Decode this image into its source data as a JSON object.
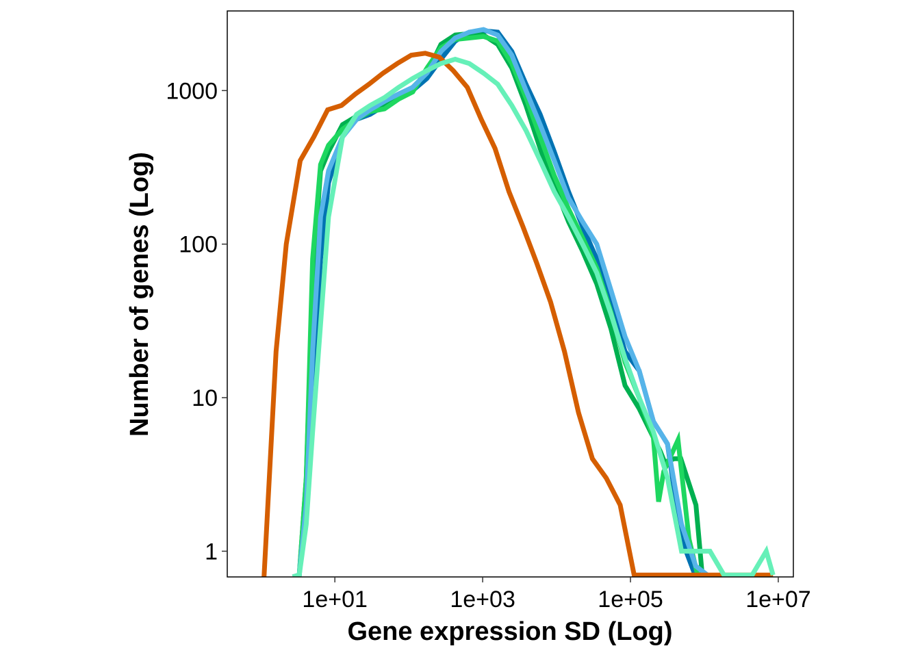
{
  "chart_data": {
    "type": "line",
    "xlabel": "Gene expression SD (Log)",
    "ylabel": "Number of genes (Log)",
    "x_scale": "log10",
    "y_scale": "log10",
    "xlim": [
      0.35,
      16000000
    ],
    "ylim": [
      0.68,
      3300
    ],
    "x_ticks": [
      10,
      1000,
      100000,
      10000000
    ],
    "x_tick_labels": [
      "1e+01",
      "1e+03",
      "1e+05",
      "1e+07"
    ],
    "y_ticks": [
      1,
      10,
      100,
      1000
    ],
    "y_tick_labels": [
      "1",
      "10",
      "100",
      "1000"
    ],
    "grid": false,
    "legend": "none",
    "series": [
      {
        "color": "#0072B2",
        "x": [
          2.7,
          3.3,
          4.1,
          5.0,
          6.4,
          8.2,
          12.7,
          19.7,
          30,
          47,
          73,
          113,
          176,
          273,
          425,
          660,
          1025,
          1600,
          2480,
          3860,
          6000,
          9300,
          14500,
          22500,
          35000,
          54500,
          84500,
          131000,
          204000,
          317000,
          490000,
          765000,
          1190000
        ],
        "y": [
          0.68,
          0.7,
          2,
          10,
          80,
          250,
          500,
          650,
          700,
          800,
          900,
          1000,
          1200,
          1600,
          2100,
          2400,
          2450,
          2400,
          1800,
          1100,
          700,
          400,
          220,
          130,
          80,
          40,
          20,
          15,
          7,
          5,
          1.2,
          0.68,
          0.68
        ]
      },
      {
        "color": "#00B050",
        "x": [
          2.7,
          3.3,
          4.1,
          5.0,
          6.4,
          8.2,
          12.7,
          19.7,
          30,
          47,
          73,
          113,
          176,
          273,
          425,
          660,
          1025,
          1600,
          2480,
          3860,
          6000,
          9300,
          14500,
          22500,
          35000,
          54500,
          84500,
          131000,
          204000,
          252000,
          290000,
          390000,
          480000,
          770000,
          940000,
          1100000
        ],
        "y": [
          0.68,
          0.7,
          3,
          60,
          300,
          400,
          600,
          680,
          750,
          800,
          900,
          1050,
          1300,
          2000,
          2300,
          2350,
          2300,
          2000,
          1400,
          800,
          420,
          240,
          140,
          90,
          55,
          28,
          12,
          8.5,
          5.5,
          4.5,
          3.8,
          4.0,
          4.0,
          2.0,
          0.68,
          0.68
        ]
      },
      {
        "color": "#1ED760",
        "x": [
          2.7,
          3.3,
          4.1,
          5.0,
          6.4,
          8.2,
          12.7,
          19.7,
          30,
          47,
          73,
          113,
          176,
          273,
          425,
          660,
          1025,
          1600,
          2480,
          3860,
          6000,
          9300,
          14500,
          22500,
          35000,
          54500,
          84500,
          131000,
          204000,
          240000,
          282000,
          440000,
          620000,
          820000
        ],
        "y": [
          0.68,
          0.7,
          3,
          80,
          330,
          440,
          560,
          650,
          730,
          760,
          880,
          980,
          1400,
          1900,
          2150,
          2200,
          2250,
          2100,
          1500,
          900,
          500,
          280,
          170,
          110,
          70,
          36,
          17,
          10,
          5.5,
          2.1,
          3.3,
          5.3,
          1.2,
          0.68
        ]
      },
      {
        "color": "#56B4E9",
        "x": [
          2.7,
          3.3,
          4.1,
          5.0,
          6.4,
          8.2,
          12.7,
          19.7,
          30,
          47,
          73,
          113,
          176,
          273,
          425,
          660,
          1025,
          1600,
          2480,
          3860,
          6000,
          9300,
          14500,
          22500,
          35000,
          54500,
          84500,
          131000,
          204000,
          317000,
          490000,
          765000,
          1190000
        ],
        "y": [
          0.68,
          0.7,
          2,
          20,
          150,
          300,
          500,
          650,
          750,
          850,
          950,
          1050,
          1300,
          1800,
          2200,
          2400,
          2500,
          2300,
          1700,
          1000,
          600,
          350,
          200,
          140,
          100,
          50,
          25,
          15,
          7,
          5,
          1.5,
          0.8,
          0.68
        ]
      },
      {
        "color": "#D55E00",
        "x": [
          1.1,
          1.6,
          2.2,
          3.4,
          5.2,
          8.0,
          12.3,
          19,
          29,
          45,
          70,
          108,
          167,
          258,
          400,
          620,
          955,
          1470,
          2270,
          3500,
          5400,
          8300,
          12800,
          19800,
          30500,
          47000,
          72500,
          112000,
          172000,
          265000,
          410000,
          630000,
          970000,
          1500000,
          2300000,
          3550000,
          5500000,
          8500000
        ],
        "y": [
          0.68,
          20,
          100,
          350,
          500,
          750,
          800,
          950,
          1100,
          1300,
          1500,
          1700,
          1750,
          1650,
          1350,
          1050,
          650,
          420,
          220,
          130,
          75,
          42,
          20,
          8,
          4,
          3,
          2,
          0.7,
          0.7,
          0.7,
          0.7,
          0.7,
          0.7,
          0.7,
          0.7,
          0.7,
          0.7,
          0.7
        ]
      },
      {
        "color": "#66F0B8",
        "x": [
          2.7,
          3.3,
          4.1,
          5.0,
          6.4,
          8.2,
          12.7,
          19.7,
          30,
          47,
          73,
          113,
          176,
          273,
          425,
          660,
          1025,
          1600,
          2480,
          3860,
          6000,
          9300,
          14500,
          22500,
          35000,
          54500,
          84500,
          131000,
          204000,
          317000,
          490000,
          765000,
          1190000,
          1840000,
          2860000,
          4430000,
          6870000,
          8500000
        ],
        "y": [
          0.68,
          0.7,
          1.5,
          6,
          30,
          150,
          500,
          700,
          800,
          900,
          1050,
          1200,
          1350,
          1500,
          1600,
          1500,
          1300,
          1100,
          800,
          550,
          350,
          220,
          150,
          100,
          65,
          35,
          18,
          10,
          6,
          3,
          1.0,
          1.0,
          1.0,
          0.7,
          0.7,
          0.7,
          1.0,
          0.7
        ]
      }
    ]
  }
}
